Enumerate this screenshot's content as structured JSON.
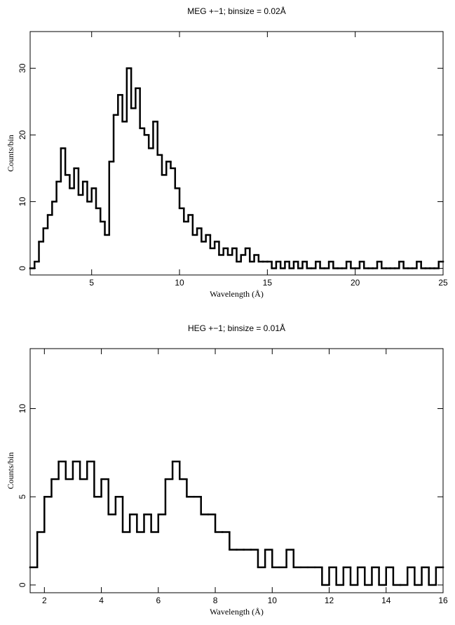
{
  "chart_data": [
    {
      "type": "histogram",
      "title": "MEG +−1; binsize = 0.02Å",
      "x_label": "Wavelength (Å)",
      "y_label": "Counts/bin",
      "color": "#000000",
      "bins": [
        1.5,
        1.75,
        2,
        2.25,
        2.5,
        2.75,
        3,
        3.25,
        3.5,
        3.75,
        4,
        4.25,
        4.5,
        4.75,
        5,
        5.25,
        5.5,
        5.75,
        6,
        6.25,
        6.5,
        6.75,
        7,
        7.25,
        7.5,
        7.75,
        8,
        8.25,
        8.5,
        8.75,
        9,
        9.25,
        9.5,
        9.75,
        10,
        10.25,
        10.5,
        10.75,
        11,
        11.25,
        11.5,
        11.75,
        12,
        12.25,
        12.5,
        12.75,
        13,
        13.25,
        13.5,
        13.75,
        14,
        14.25,
        14.5,
        14.75,
        15,
        15.25,
        15.5,
        15.75,
        16,
        16.25,
        16.5,
        16.75,
        17,
        17.25,
        17.5,
        17.75,
        18,
        18.25,
        18.5,
        18.75,
        19,
        19.25,
        19.5,
        19.75,
        20,
        20.25,
        20.5,
        20.75,
        21,
        21.25,
        21.5,
        21.75,
        22,
        22.25,
        22.5,
        22.75,
        23,
        23.25,
        23.5,
        23.75,
        24,
        24.25,
        24.5,
        24.75,
        25
      ],
      "values": [
        0,
        1,
        4,
        6,
        8,
        10,
        13,
        18,
        14,
        12,
        15,
        11,
        13,
        10,
        12,
        9,
        7,
        5,
        16,
        23,
        26,
        22,
        30,
        24,
        27,
        21,
        20,
        18,
        22,
        17,
        14,
        16,
        15,
        12,
        9,
        7,
        8,
        5,
        6,
        4,
        5,
        3,
        4,
        2,
        3,
        2,
        3,
        1,
        2,
        3,
        1,
        2,
        1,
        1,
        1,
        0,
        1,
        0,
        1,
        0,
        1,
        0,
        1,
        0,
        0,
        1,
        0,
        0,
        1,
        0,
        0,
        0,
        1,
        0,
        0,
        1,
        0,
        0,
        0,
        1,
        0,
        0,
        0,
        0,
        1,
        0,
        0,
        0,
        1,
        0,
        0,
        0,
        0,
        1
      ],
      "xlim": [
        1.5,
        25
      ],
      "ylim": [
        -1,
        35.5
      ],
      "xticks": [
        5,
        10,
        15,
        20,
        25
      ],
      "yticks": [
        0,
        10,
        20,
        30
      ]
    },
    {
      "type": "histogram",
      "title": "HEG +−1; binsize = 0.01Å",
      "x_label": "Wavelength (Å)",
      "y_label": "Counts/bin",
      "color": "#000000",
      "bins": [
        1.5,
        1.75,
        2,
        2.25,
        2.5,
        2.75,
        3,
        3.25,
        3.5,
        3.75,
        4,
        4.25,
        4.5,
        4.75,
        5,
        5.25,
        5.5,
        5.75,
        6,
        6.25,
        6.5,
        6.75,
        7,
        7.25,
        7.5,
        7.75,
        8,
        8.25,
        8.5,
        8.75,
        9,
        9.25,
        9.5,
        9.75,
        10,
        10.25,
        10.5,
        10.75,
        11,
        11.25,
        11.5,
        11.75,
        12,
        12.25,
        12.5,
        12.75,
        13,
        13.25,
        13.5,
        13.75,
        14,
        14.25,
        14.5,
        14.75,
        15,
        15.25,
        15.5,
        15.75,
        16
      ],
      "values": [
        1,
        3,
        5,
        6,
        7,
        6,
        7,
        6,
        7,
        5,
        6,
        4,
        5,
        3,
        4,
        3,
        4,
        3,
        4,
        6,
        7,
        6,
        5,
        5,
        4,
        4,
        3,
        3,
        2,
        2,
        2,
        2,
        1,
        2,
        1,
        1,
        2,
        1,
        1,
        1,
        1,
        0,
        1,
        0,
        1,
        0,
        1,
        0,
        1,
        0,
        1,
        0,
        0,
        1,
        0,
        1,
        0,
        1
      ],
      "xlim": [
        1.5,
        16
      ],
      "ylim": [
        -0.44,
        13.4
      ],
      "xticks": [
        2,
        4,
        6,
        8,
        10,
        12,
        14,
        16
      ],
      "yticks": [
        0,
        5,
        10
      ]
    }
  ]
}
